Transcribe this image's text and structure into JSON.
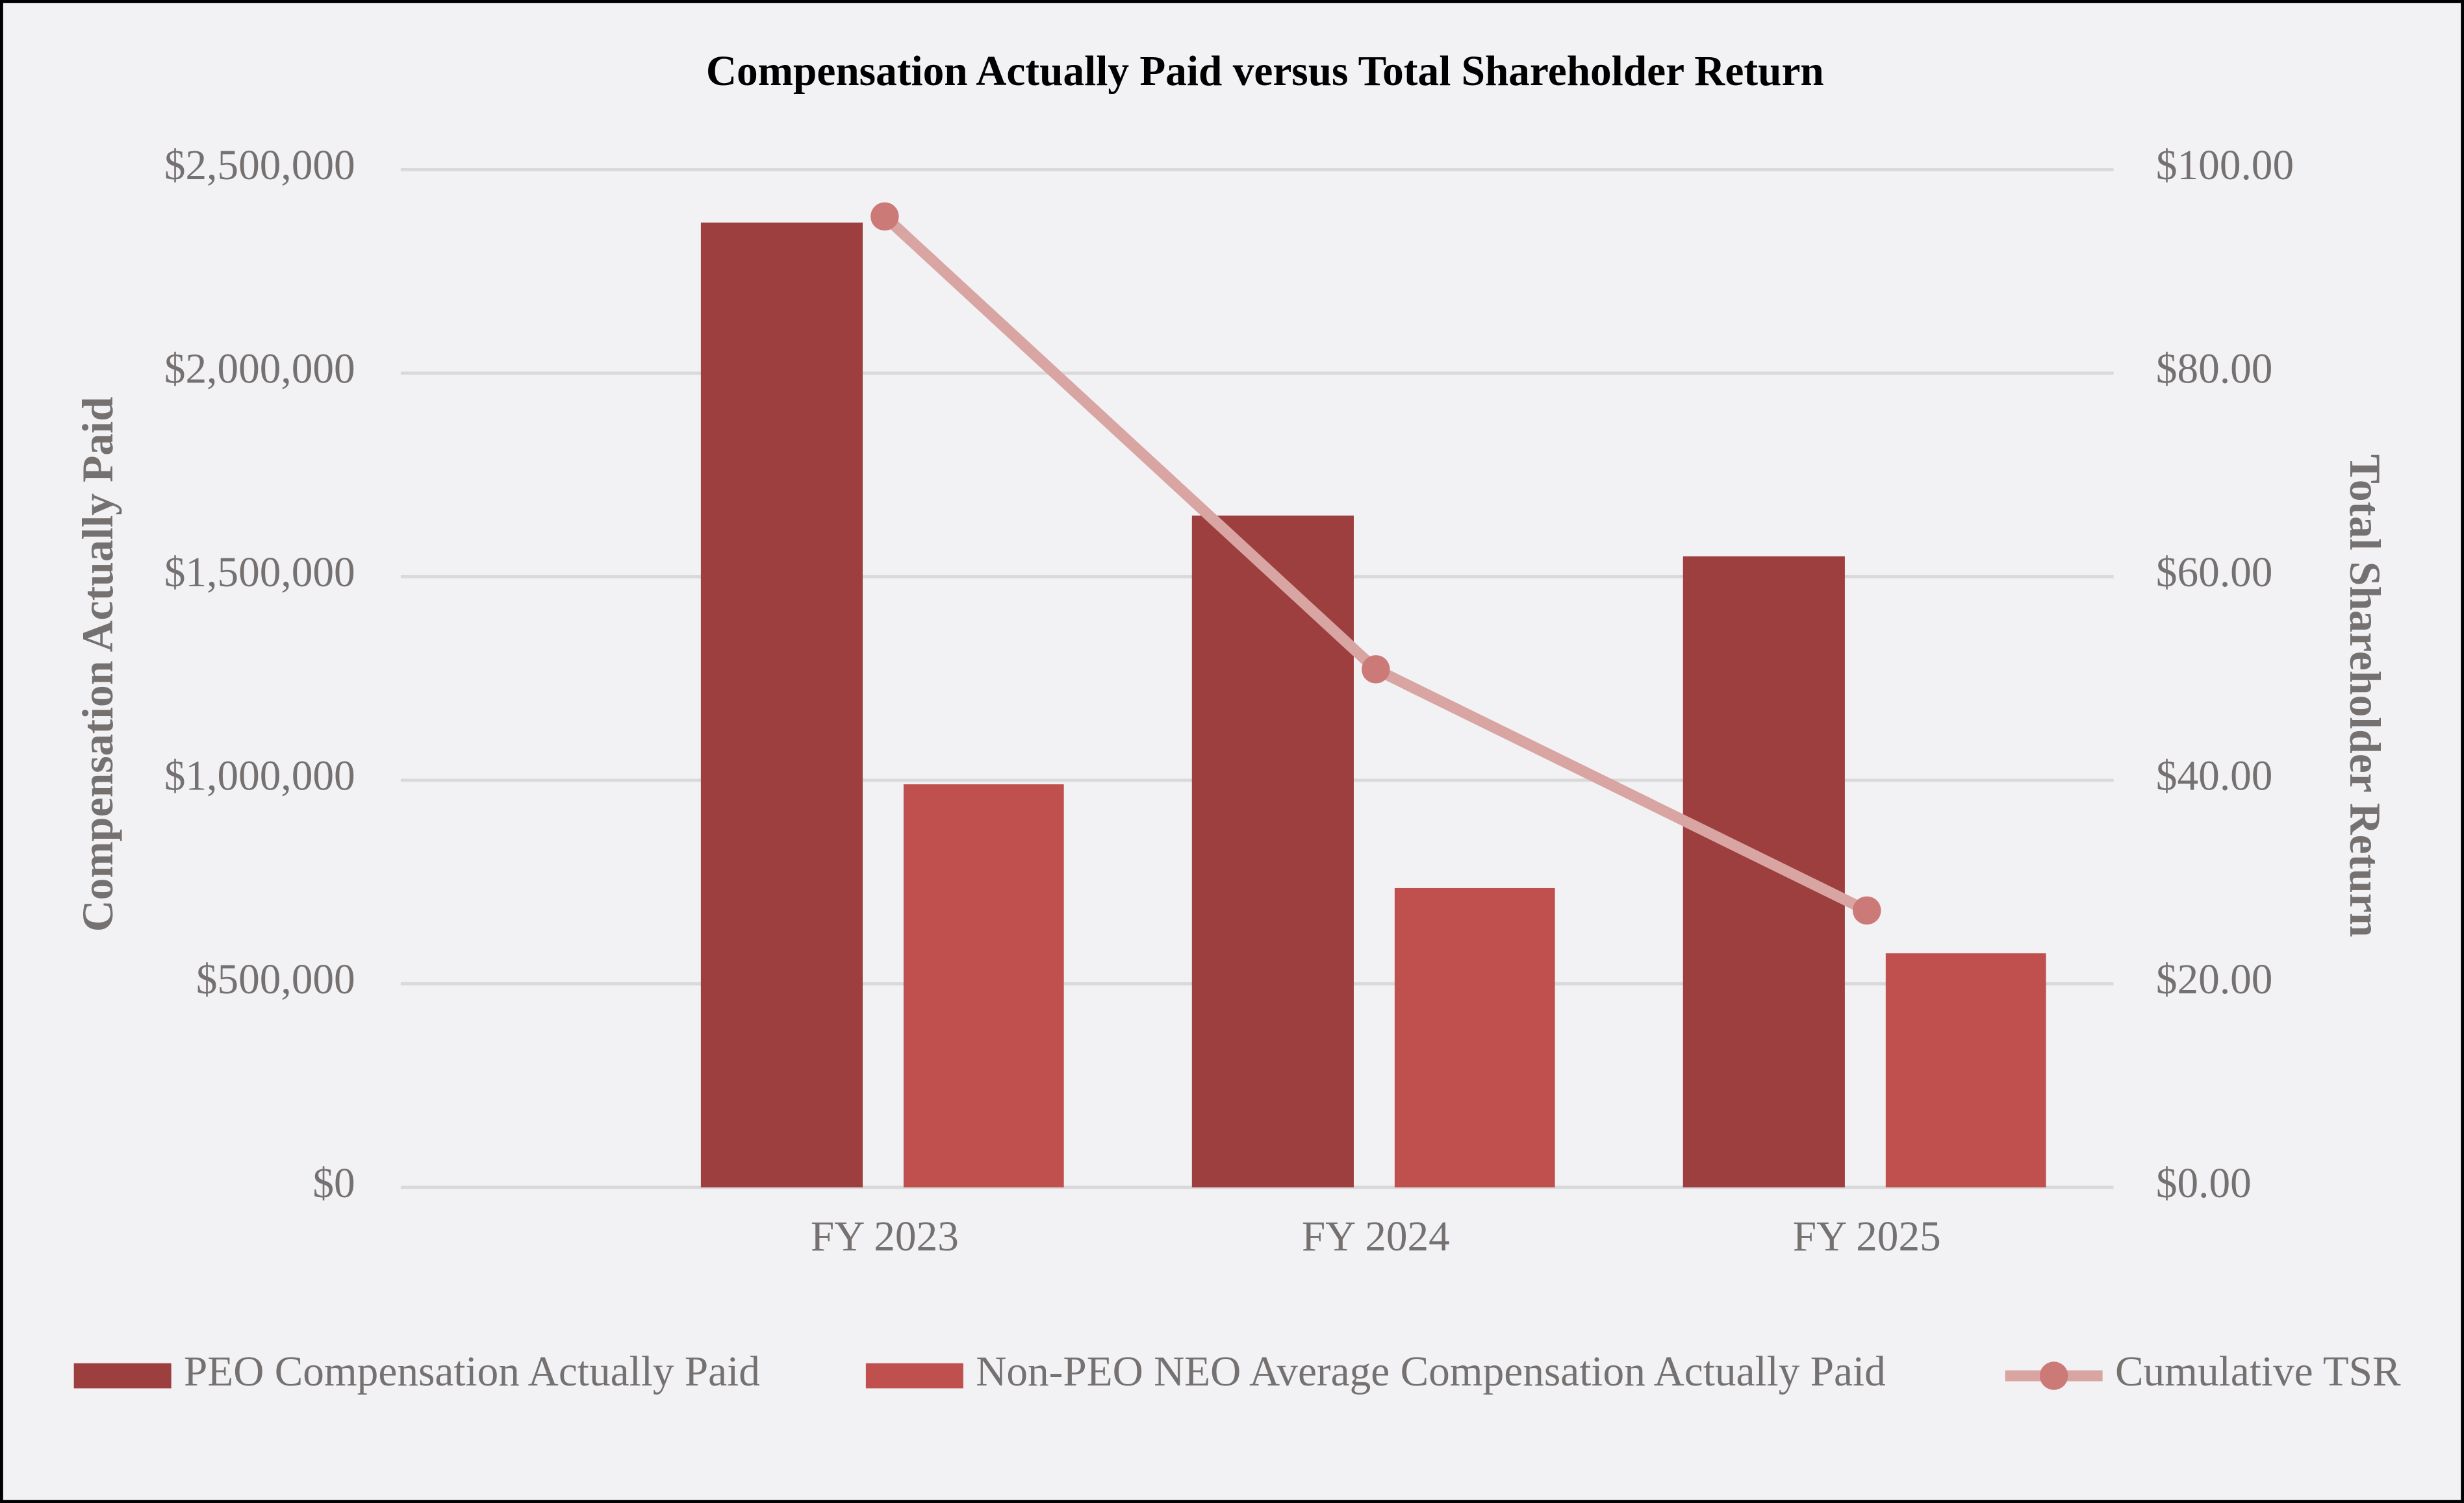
{
  "chart_data": {
    "type": "bar-line",
    "title": "Compensation Actually Paid versus Total Shareholder Return",
    "y_label": "Compensation Actually Paid",
    "y2_label": "Total Shareholder Return",
    "categories": [
      "FY 2023",
      "FY 2024",
      "FY 2025"
    ],
    "series": [
      {
        "name": "PEO Compensation Actually Paid",
        "type": "bar",
        "color": "#9e3f3f",
        "values": [
          2370000,
          1650000,
          1550000
        ]
      },
      {
        "name": "Non-PEO NEO Average Compensation Actually Paid",
        "type": "bar",
        "color": "#c0504d",
        "values": [
          990000,
          735000,
          575000
        ]
      },
      {
        "name": "Cumulative TSR",
        "type": "line",
        "axis": "y2",
        "color": "#d9a5a3",
        "marker_color": "#cc7a78",
        "values": [
          95.4,
          50.9,
          27.2
        ]
      }
    ],
    "ylim": [
      0,
      2500000
    ],
    "yticks": [
      {
        "value": 0,
        "label": "$0"
      },
      {
        "value": 500000,
        "label": "$500,000"
      },
      {
        "value": 1000000,
        "label": "$1,000,000"
      },
      {
        "value": 1500000,
        "label": "$1,500,000"
      },
      {
        "value": 2000000,
        "label": "$2,000,000"
      },
      {
        "value": 2500000,
        "label": "$2,500,000"
      }
    ],
    "y2lim": [
      0,
      100
    ],
    "y2ticks": [
      {
        "value": 0,
        "label": "$0.00"
      },
      {
        "value": 20,
        "label": "$20.00"
      },
      {
        "value": 40,
        "label": "$40.00"
      },
      {
        "value": 60,
        "label": "$60.00"
      },
      {
        "value": 80,
        "label": "$80.00"
      },
      {
        "value": 100,
        "label": "$100.00"
      }
    ],
    "grid": true,
    "legend": "bottom"
  }
}
